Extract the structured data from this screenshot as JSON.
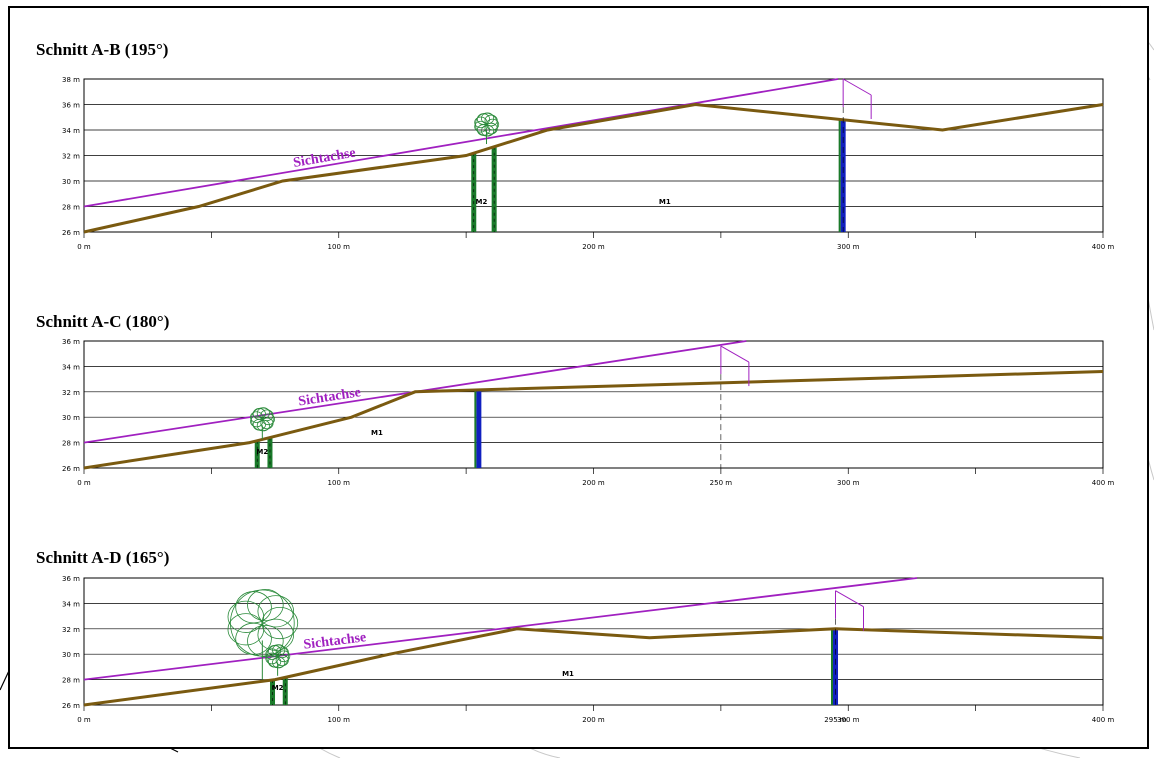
{
  "chart_data": [
    {
      "type": "line",
      "title": "Schnitt A-B (195°)",
      "axis_label": "Sichtachse",
      "ylim": [
        26,
        38
      ],
      "yticks": [
        "26 m",
        "28 m",
        "30 m",
        "32 m",
        "34 m",
        "36 m",
        "38 m"
      ],
      "xlim": [
        0,
        400
      ],
      "xticks": [
        "0 m",
        "100 m",
        "200 m",
        "300 m",
        "400 m"
      ],
      "terrain": [
        [
          0,
          26
        ],
        [
          45,
          28
        ],
        [
          78,
          30
        ],
        [
          150,
          32
        ],
        [
          182,
          34
        ],
        [
          240,
          36
        ],
        [
          337,
          34
        ],
        [
          400,
          36
        ]
      ],
      "sightline": [
        [
          0,
          28
        ],
        [
          296,
          38
        ]
      ],
      "trees": [
        {
          "x": 158,
          "y": 32.9,
          "size": "small"
        }
      ],
      "posts": [
        {
          "x": 153,
          "color": "green"
        },
        {
          "x": 161,
          "color": "green"
        },
        {
          "x": 298,
          "color": "blue"
        }
      ],
      "labels": [
        {
          "text": "M2",
          "x": 156,
          "y": 28.2
        },
        {
          "text": "M1",
          "x": 228,
          "y": 28.2
        }
      ],
      "viewpoint": {
        "x": 298,
        "y": 38
      },
      "extra_xlabels": []
    },
    {
      "type": "line",
      "title": "Schnitt A-C (180°)",
      "axis_label": "Sichtachse",
      "ylim": [
        26,
        36
      ],
      "yticks": [
        "26 m",
        "28 m",
        "30 m",
        "32 m",
        "34 m",
        "36 m"
      ],
      "xlim": [
        0,
        400
      ],
      "xticks": [
        "0 m",
        "100 m",
        "200 m",
        "250 m",
        "300 m",
        "400 m"
      ],
      "terrain": [
        [
          0,
          26
        ],
        [
          65,
          28
        ],
        [
          105,
          30
        ],
        [
          130,
          32
        ],
        [
          155,
          32.15
        ],
        [
          250,
          32.7
        ],
        [
          400,
          33.6
        ]
      ],
      "sightline": [
        [
          0,
          28
        ],
        [
          260,
          36
        ]
      ],
      "trees": [
        {
          "x": 70,
          "y": 28.3,
          "size": "small"
        }
      ],
      "posts": [
        {
          "x": 68,
          "color": "green"
        },
        {
          "x": 73,
          "color": "green"
        },
        {
          "x": 155,
          "color": "blue"
        }
      ],
      "labels": [
        {
          "text": "M2",
          "x": 70,
          "y": 27.1
        },
        {
          "text": "M1",
          "x": 115,
          "y": 28.6
        }
      ],
      "viewpoint": {
        "x": 250,
        "y": 35.6
      },
      "extra_xlabels": []
    },
    {
      "type": "line",
      "title": "Schnitt A-D (165°)",
      "axis_label": "Sichtachse",
      "ylim": [
        26,
        36
      ],
      "yticks": [
        "26 m",
        "28 m",
        "30 m",
        "32 m",
        "34 m",
        "36 m"
      ],
      "xlim": [
        0,
        400
      ],
      "xticks": [
        "0 m",
        "100 m",
        "200 m",
        "295 m",
        "300 m",
        "400 m"
      ],
      "terrain": [
        [
          0,
          26
        ],
        [
          75,
          28
        ],
        [
          120,
          30
        ],
        [
          170,
          32
        ],
        [
          222,
          31.3
        ],
        [
          295,
          32
        ],
        [
          400,
          31.3
        ]
      ],
      "sightline": [
        [
          0,
          28
        ],
        [
          327,
          36
        ]
      ],
      "trees": [
        {
          "x": 70,
          "y": 28,
          "size": "large"
        },
        {
          "x": 76,
          "y": 28.3,
          "size": "small"
        }
      ],
      "posts": [
        {
          "x": 74,
          "color": "green"
        },
        {
          "x": 79,
          "color": "green"
        },
        {
          "x": 295,
          "color": "blue"
        }
      ],
      "labels": [
        {
          "text": "M2",
          "x": 76,
          "y": 27.2
        },
        {
          "text": "M1",
          "x": 190,
          "y": 28.3
        }
      ],
      "viewpoint": {
        "x": 295,
        "y": 35
      },
      "extra_xlabels": []
    }
  ],
  "colors": {
    "terrain": "#7a5a10",
    "sightline": "#a020c0",
    "grid": "#000000",
    "post_green": "#1a7a2a",
    "post_blue": "#1020c0",
    "tree": "#2a8a3a"
  }
}
